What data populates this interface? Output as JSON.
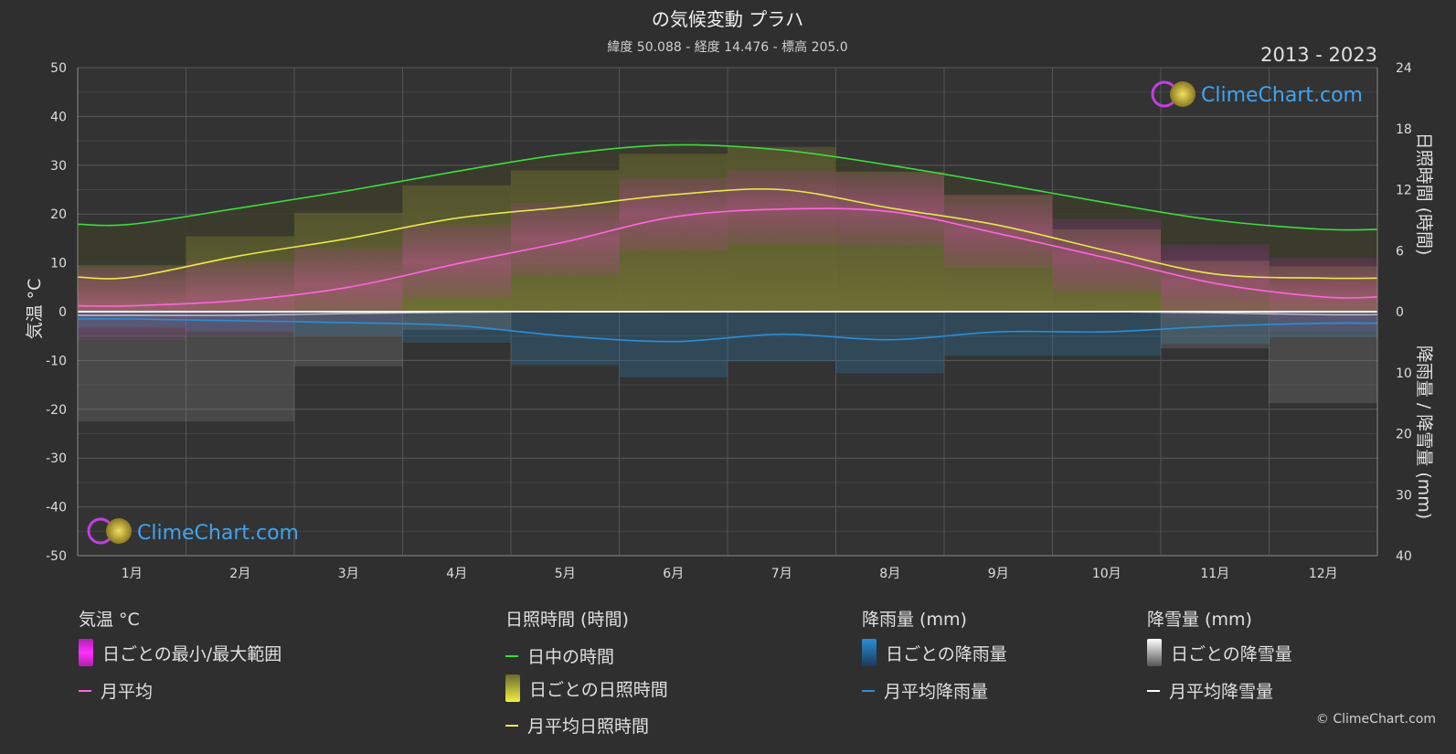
{
  "title": "の気候変動 プラハ",
  "subtitle": "緯度 50.088 - 経度 14.476 - 標高 205.0",
  "period": "2013 - 2023",
  "logo_text": "ClimeChart.com",
  "copyright": "© ClimeChart.com",
  "axes": {
    "left_label": "気温 °C",
    "right_top_label": "日照時間 (時間)",
    "right_bottom_label": "降雨量 / 降雪量 (mm)",
    "left_ticks": [
      "50",
      "40",
      "30",
      "20",
      "10",
      "0",
      "-10",
      "-20",
      "-30",
      "-40",
      "-50"
    ],
    "right_top_ticks": [
      "24",
      "18",
      "12",
      "6",
      "0"
    ],
    "right_bottom_ticks": [
      "10",
      "20",
      "30",
      "40"
    ]
  },
  "legend": {
    "temperature": {
      "title": "気温 °C",
      "range": "日ごとの最小/最大範囲",
      "avg": "月平均"
    },
    "sunshine": {
      "title": "日照時間 (時間)",
      "daylight": "日中の時間",
      "daily": "日ごとの日照時間",
      "avg": "月平均日照時間"
    },
    "rain": {
      "title": "降雨量 (mm)",
      "daily": "日ごとの降雨量",
      "avg": "月平均降雨量"
    },
    "snow": {
      "title": "降雪量 (mm)",
      "daily": "日ごとの降雪量",
      "avg": "月平均降雪量"
    }
  },
  "colors": {
    "daylight": "#3ddc3d",
    "sunshine_avg": "#e8e84a",
    "temp_avg": "#ff66dd",
    "temp_range": "#e020e0",
    "sunshine_fill": "#a8a838",
    "rain": "#2b8ed6",
    "snow": "#ffffff"
  },
  "chart_data": {
    "type": "line",
    "categories": [
      "1月",
      "2月",
      "3月",
      "4月",
      "5月",
      "6月",
      "7月",
      "8月",
      "9月",
      "10月",
      "11月",
      "12月"
    ],
    "temp_ylim": [
      -50,
      50
    ],
    "sun_ylim": [
      0,
      24
    ],
    "precip_ylim": [
      0,
      40
    ],
    "series": [
      {
        "name": "日中の時間",
        "axis": "sun",
        "values": [
          8.6,
          10.2,
          11.9,
          13.8,
          15.5,
          16.4,
          15.9,
          14.4,
          12.6,
          10.7,
          9.0,
          8.1
        ]
      },
      {
        "name": "月平均日照時間",
        "axis": "sun",
        "values": [
          3.4,
          5.5,
          7.2,
          9.2,
          10.3,
          11.5,
          12.0,
          10.2,
          8.5,
          6.0,
          3.7,
          3.3
        ]
      },
      {
        "name": "月平均",
        "axis": "temp",
        "values": [
          1.2,
          2.3,
          5.0,
          9.8,
          14.3,
          19.4,
          21.0,
          20.5,
          16.0,
          11.0,
          5.8,
          3.0
        ]
      },
      {
        "name": "月平均降雨量",
        "axis": "precip",
        "values": [
          1.2,
          1.5,
          1.8,
          2.3,
          4.0,
          4.9,
          3.7,
          4.6,
          3.3,
          3.3,
          2.4,
          1.9
        ]
      },
      {
        "name": "月平均降雪量",
        "axis": "precip",
        "values": [
          0.6,
          0.6,
          0.3,
          0.1,
          0.0,
          0.0,
          0.0,
          0.0,
          0.0,
          0.0,
          0.2,
          0.5
        ]
      }
    ]
  }
}
